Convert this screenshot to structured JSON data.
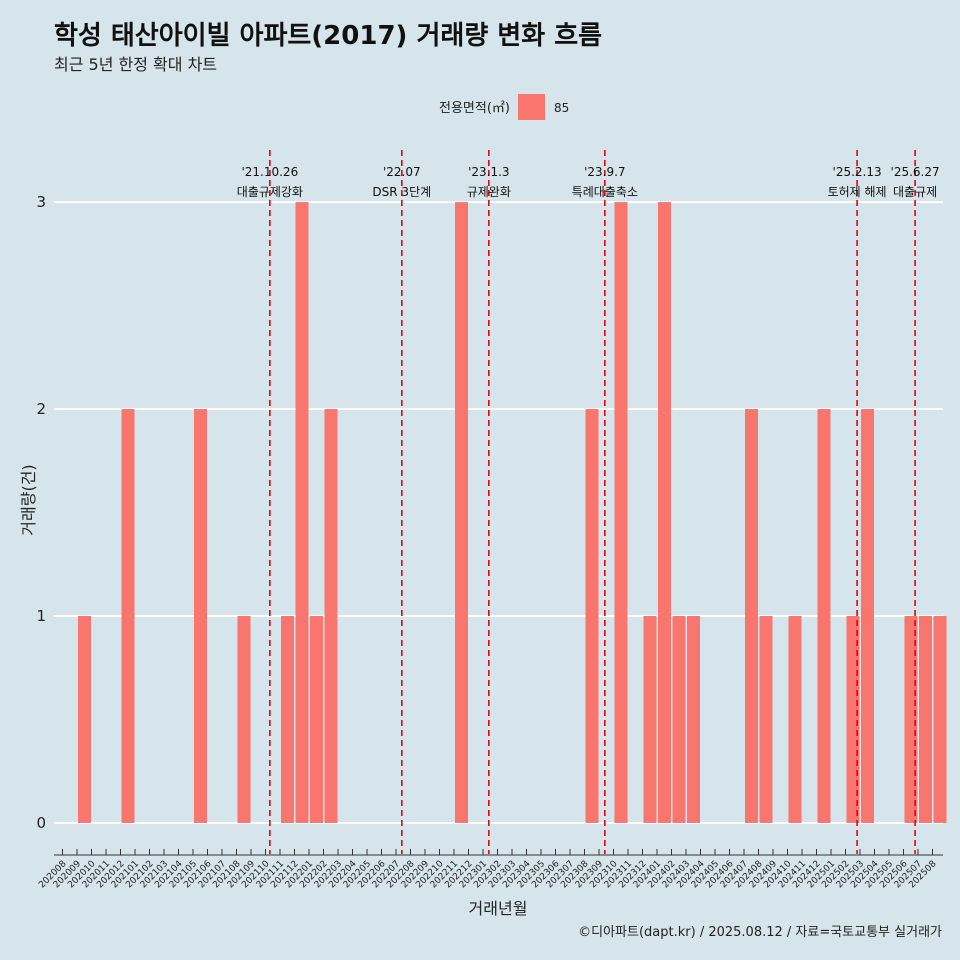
{
  "title": "학성 태산아이빌 아파트(2017) 거래량 변화 흐름",
  "subtitle": "최근 5년 한정 확대 차트",
  "caption": "©디아파트(dapt.kr) / 2025.08.12 / 자료=국토교통부 실거래가",
  "colors": {
    "background": "#d6e4eb",
    "bar": "#f8766d",
    "event_line": "#e8000b",
    "grid": "#ffffff"
  },
  "chart_data": {
    "type": "bar",
    "xlabel": "거래년월",
    "ylabel": "거래량(건)",
    "ylim": [
      -0.15,
      3.3
    ],
    "yticks": [
      0,
      1,
      2,
      3
    ],
    "grid": true,
    "legend": {
      "title": "전용면적(㎡)",
      "placement": "top",
      "entries": [
        "85"
      ]
    },
    "categories": [
      "202008",
      "202009",
      "202010",
      "202011",
      "202012",
      "202101",
      "202102",
      "202103",
      "202104",
      "202105",
      "202106",
      "202107",
      "202108",
      "202109",
      "202110",
      "202111",
      "202112",
      "202201",
      "202202",
      "202203",
      "202204",
      "202205",
      "202206",
      "202207",
      "202208",
      "202209",
      "202210",
      "202211",
      "202212",
      "202301",
      "202302",
      "202303",
      "202304",
      "202305",
      "202306",
      "202307",
      "202308",
      "202309",
      "202310",
      "202311",
      "202312",
      "202401",
      "202402",
      "202403",
      "202404",
      "202405",
      "202406",
      "202407",
      "202408",
      "202409",
      "202410",
      "202411",
      "202412",
      "202501",
      "202502",
      "202503",
      "202504",
      "202505",
      "202506",
      "202507",
      "202508"
    ],
    "series": [
      {
        "name": "85",
        "values": [
          0,
          1,
          0,
          0,
          2,
          0,
          0,
          0,
          0,
          2,
          0,
          0,
          1,
          0,
          0,
          1,
          3,
          1,
          2,
          0,
          0,
          0,
          0,
          0,
          0,
          0,
          0,
          3,
          0,
          0,
          0,
          0,
          0,
          0,
          0,
          0,
          2,
          0,
          3,
          0,
          1,
          3,
          1,
          1,
          0,
          0,
          0,
          2,
          1,
          0,
          1,
          0,
          2,
          0,
          1,
          2,
          0,
          0,
          1,
          1,
          1
        ]
      }
    ],
    "events": [
      {
        "x": 14.3,
        "date": "'21.10.26",
        "label": "대출규제강화"
      },
      {
        "x": 23.4,
        "date": "'22.07",
        "label": "DSR 3단계"
      },
      {
        "x": 29.4,
        "date": "'23.1.3",
        "label": "규제완화"
      },
      {
        "x": 37.4,
        "date": "'23.9.7",
        "label": "특례대출축소"
      },
      {
        "x": 54.8,
        "date": "'25.2.13",
        "label": "토허제 해제"
      },
      {
        "x": 58.8,
        "date": "'25.6.27",
        "label": "대출규제"
      }
    ]
  }
}
